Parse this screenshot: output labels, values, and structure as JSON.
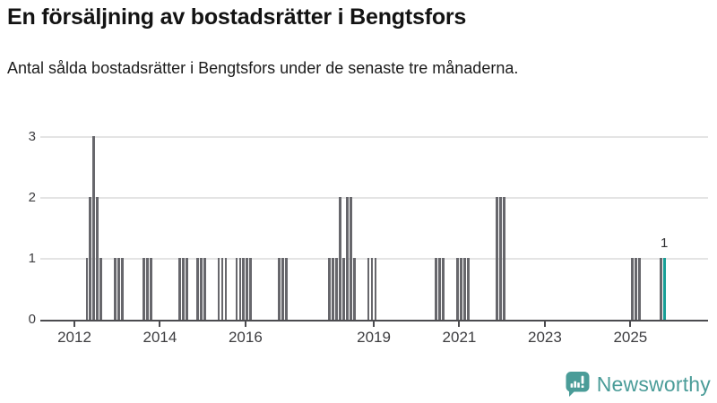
{
  "header": {
    "title": "En försäljning av bostadsrätter i Bengtsfors",
    "subtitle": "Antal sålda bostadsrätter i Bengtsfors under de senaste tre månaderna."
  },
  "chart_data": {
    "type": "bar",
    "title": "En försäljning av bostadsrätter i Bengtsfors",
    "subtitle": "Antal sålda bostadsrätter i Bengtsfors under de senaste tre månaderna.",
    "ylabel": "",
    "xlabel": "",
    "ylim": [
      0,
      3
    ],
    "yticks": [
      0,
      1,
      2,
      3
    ],
    "xticks": [
      2012,
      2014,
      2016,
      2019,
      2021,
      2023,
      2025
    ],
    "grid": "horizontal",
    "legend": "none",
    "bar_color": "#67676C",
    "current_bar_color": "#179E96",
    "annotation": {
      "text": "1",
      "month": "2025-10"
    },
    "bars": [
      {
        "m": "2012-04",
        "v": 1
      },
      {
        "m": "2012-05",
        "v": 2
      },
      {
        "m": "2012-06",
        "v": 3
      },
      {
        "m": "2012-07",
        "v": 2
      },
      {
        "m": "2012-08",
        "v": 1
      },
      {
        "m": "2012-12",
        "v": 1
      },
      {
        "m": "2013-01",
        "v": 1
      },
      {
        "m": "2013-02",
        "v": 1
      },
      {
        "m": "2013-08",
        "v": 1
      },
      {
        "m": "2013-09",
        "v": 1
      },
      {
        "m": "2013-10",
        "v": 1
      },
      {
        "m": "2014-06",
        "v": 1
      },
      {
        "m": "2014-07",
        "v": 1
      },
      {
        "m": "2014-08",
        "v": 1
      },
      {
        "m": "2014-11",
        "v": 1
      },
      {
        "m": "2014-12",
        "v": 1
      },
      {
        "m": "2015-01",
        "v": 1
      },
      {
        "m": "2015-05",
        "v": 1
      },
      {
        "m": "2015-06",
        "v": 1
      },
      {
        "m": "2015-07",
        "v": 1
      },
      {
        "m": "2015-10",
        "v": 1
      },
      {
        "m": "2015-11",
        "v": 1
      },
      {
        "m": "2015-12",
        "v": 1
      },
      {
        "m": "2016-01",
        "v": 1
      },
      {
        "m": "2016-02",
        "v": 1
      },
      {
        "m": "2016-10",
        "v": 1
      },
      {
        "m": "2016-11",
        "v": 1
      },
      {
        "m": "2016-12",
        "v": 1
      },
      {
        "m": "2017-12",
        "v": 1
      },
      {
        "m": "2018-01",
        "v": 1
      },
      {
        "m": "2018-02",
        "v": 1
      },
      {
        "m": "2018-03",
        "v": 2
      },
      {
        "m": "2018-04",
        "v": 1
      },
      {
        "m": "2018-05",
        "v": 2
      },
      {
        "m": "2018-06",
        "v": 2
      },
      {
        "m": "2018-07",
        "v": 1
      },
      {
        "m": "2018-11",
        "v": 1
      },
      {
        "m": "2018-12",
        "v": 1
      },
      {
        "m": "2019-01",
        "v": 1
      },
      {
        "m": "2020-06",
        "v": 1
      },
      {
        "m": "2020-07",
        "v": 1
      },
      {
        "m": "2020-08",
        "v": 1
      },
      {
        "m": "2020-12",
        "v": 1
      },
      {
        "m": "2021-01",
        "v": 1
      },
      {
        "m": "2021-02",
        "v": 1
      },
      {
        "m": "2021-03",
        "v": 1
      },
      {
        "m": "2021-11",
        "v": 2
      },
      {
        "m": "2021-12",
        "v": 2
      },
      {
        "m": "2022-01",
        "v": 2
      },
      {
        "m": "2025-01",
        "v": 1
      },
      {
        "m": "2025-02",
        "v": 1
      },
      {
        "m": "2025-03",
        "v": 1
      },
      {
        "m": "2025-09",
        "v": 1
      },
      {
        "m": "2025-10",
        "v": 1,
        "current": true
      }
    ]
  },
  "footer": {
    "brand": "Newsworthy",
    "brand_color": "#4A9C98"
  }
}
